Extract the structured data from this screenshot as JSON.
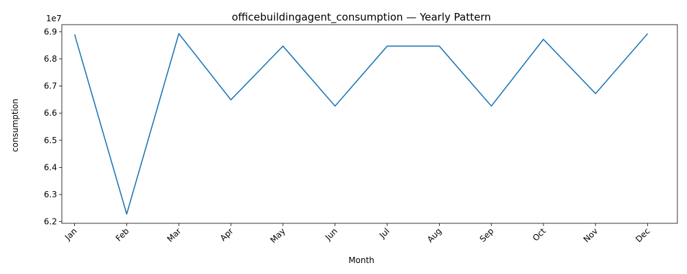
{
  "chart_data": {
    "type": "line",
    "title": "officebuildingagent_consumption — Yearly Pattern",
    "xlabel": "Month",
    "ylabel": "consumption",
    "y_offset_label": "1e7",
    "categories": [
      "Jan",
      "Feb",
      "Mar",
      "Apr",
      "May",
      "Jun",
      "Jul",
      "Aug",
      "Sep",
      "Oct",
      "Nov",
      "Dec"
    ],
    "series": [
      {
        "values": [
          68900000,
          62280000,
          68930000,
          66490000,
          68470000,
          66260000,
          68470000,
          68470000,
          66260000,
          68720000,
          66720000,
          68930000
        ]
      }
    ],
    "yticks": [
      62000000,
      63000000,
      64000000,
      65000000,
      66000000,
      67000000,
      68000000,
      69000000
    ],
    "ytick_labels": [
      "6.2",
      "6.3",
      "6.4",
      "6.5",
      "6.6",
      "6.7",
      "6.8",
      "6.9"
    ],
    "ylim": [
      61940000,
      69260000
    ],
    "line_color": "#1f77b4",
    "grid": false,
    "legend": "none"
  }
}
